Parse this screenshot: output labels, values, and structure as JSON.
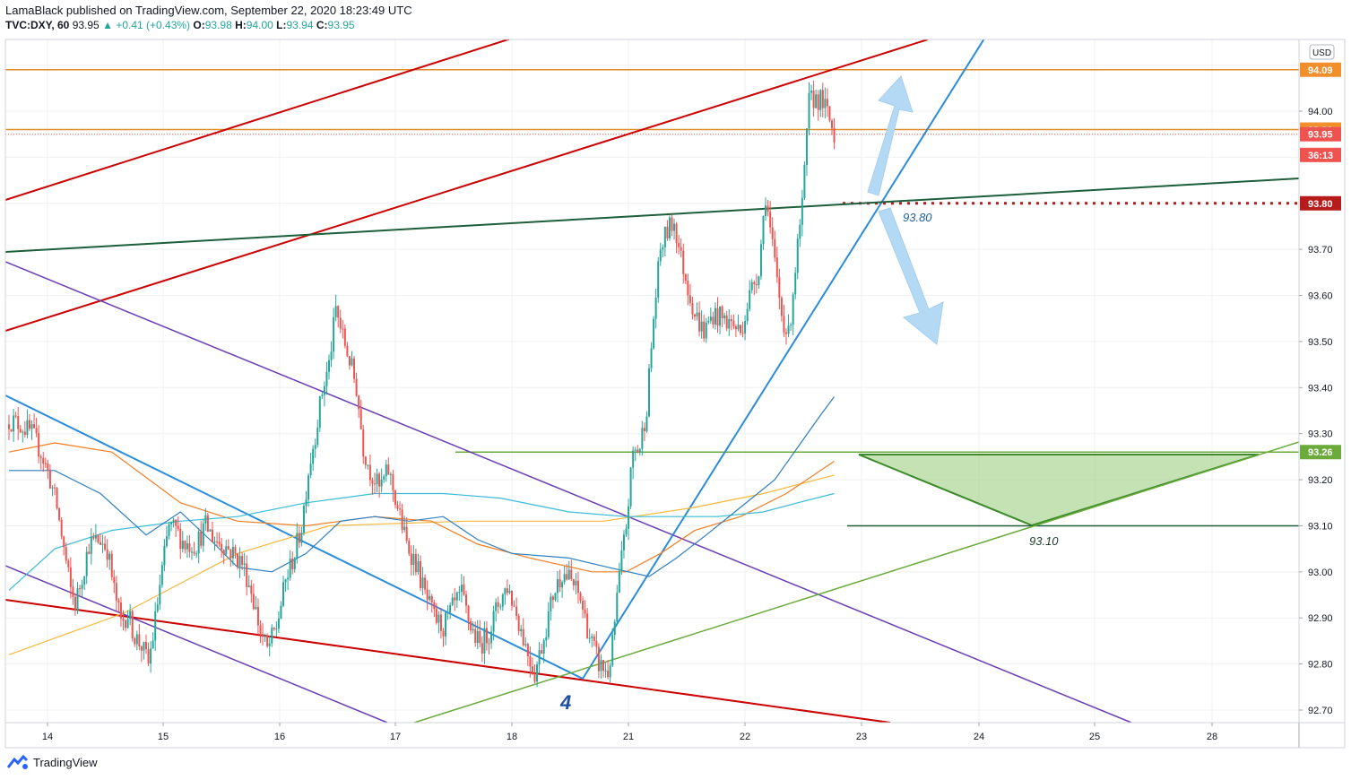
{
  "header": {
    "publisher_line": "LamaBlack published on TradingView.com, September 22, 2020 18:23:49 UTC",
    "symbol": "TVC:DXY, 60",
    "last": "93.95",
    "change_arrow": "▲",
    "change": "+0.41 (+0.43%)",
    "o_label": "O:",
    "o": "93.98",
    "h_label": "H:",
    "h": "94.00",
    "l_label": "L:",
    "l": "93.94",
    "c_label": "C:",
    "c": "93.95"
  },
  "footer": {
    "brand": "TradingView"
  },
  "colors": {
    "up": "#26a69a",
    "down": "#ef5350",
    "red_channel": "#cc0000",
    "purple": "#6a3db5",
    "blue": "#2a8cdb",
    "green_light": "#6aab3c",
    "green_dark": "#1e5e3a",
    "orange": "#e08a2a",
    "ma_yellow": "#f6b93b",
    "ma_orange": "#f57c20",
    "ma_cyan": "#38bcd5",
    "ma_blue": "#2d7fc1"
  },
  "chart_data": {
    "type": "candlestick",
    "currency_label": "USD",
    "ylim": [
      92.64,
      94.17
    ],
    "y_ticks": [
      "94.00",
      "93.70",
      "93.60",
      "93.50",
      "93.40",
      "93.30",
      "93.20",
      "93.10",
      "93.00",
      "92.90",
      "92.80",
      "92.70"
    ],
    "x_ticks": [
      "14",
      "15",
      "16",
      "17",
      "18",
      "21",
      "22",
      "23",
      "24",
      "25",
      "28"
    ],
    "price_tags": [
      {
        "label": "94.09",
        "value": 94.09,
        "color": "#f08f2b"
      },
      {
        "label": "93.96",
        "value": 93.96,
        "color": "#f08f2b"
      },
      {
        "label": "93.95",
        "value": 93.95,
        "color": "#ef5350"
      },
      {
        "label": "36:13",
        "value": 93.905,
        "color": "#ef5350"
      },
      {
        "label": "93.80",
        "value": 93.8,
        "color": "#b71c1c"
      },
      {
        "label": "93.26",
        "value": 93.26,
        "color": "#6aab3c"
      }
    ],
    "annotations": [
      {
        "text": "93.80",
        "kind": "level"
      },
      {
        "text": "93.10",
        "kind": "level"
      },
      {
        "text": "4",
        "kind": "wave"
      }
    ],
    "candle_path": [
      [
        0,
        93.33
      ],
      [
        5,
        93.32
      ],
      [
        10,
        93.3
      ],
      [
        14,
        93.26
      ],
      [
        18,
        93.2
      ],
      [
        21,
        93.14
      ],
      [
        24,
        93.05
      ],
      [
        27,
        92.96
      ],
      [
        29,
        92.93
      ],
      [
        32,
        92.99
      ],
      [
        35,
        93.06
      ],
      [
        40,
        93.07
      ],
      [
        43,
        93.05
      ],
      [
        46,
        92.96
      ],
      [
        49,
        92.89
      ],
      [
        52,
        92.91
      ],
      [
        55,
        92.86
      ],
      [
        58,
        92.84
      ],
      [
        61,
        92.8
      ],
      [
        63,
        92.86
      ],
      [
        66,
        92.97
      ],
      [
        70,
        93.1
      ],
      [
        73,
        93.09
      ],
      [
        77,
        93.06
      ],
      [
        82,
        93.06
      ],
      [
        86,
        93.1
      ],
      [
        90,
        93.07
      ],
      [
        94,
        93.06
      ],
      [
        98,
        93.04
      ],
      [
        102,
        93.02
      ],
      [
        106,
        92.96
      ],
      [
        110,
        92.87
      ],
      [
        113,
        92.83
      ],
      [
        117,
        92.88
      ],
      [
        121,
        92.98
      ],
      [
        125,
        93.04
      ],
      [
        128,
        93.1
      ],
      [
        131,
        93.22
      ],
      [
        134,
        93.3
      ],
      [
        137,
        93.39
      ],
      [
        140,
        93.45
      ],
      [
        143,
        93.57
      ],
      [
        146,
        93.51
      ],
      [
        149,
        93.46
      ],
      [
        152,
        93.4
      ],
      [
        155,
        93.27
      ],
      [
        158,
        93.22
      ],
      [
        162,
        93.18
      ],
      [
        166,
        93.22
      ],
      [
        170,
        93.14
      ],
      [
        174,
        93.06
      ],
      [
        178,
        93.02
      ],
      [
        182,
        92.95
      ],
      [
        186,
        92.9
      ],
      [
        190,
        92.88
      ],
      [
        194,
        92.92
      ],
      [
        198,
        92.95
      ],
      [
        202,
        92.88
      ],
      [
        206,
        92.84
      ],
      [
        210,
        92.87
      ],
      [
        214,
        92.93
      ],
      [
        218,
        92.97
      ],
      [
        222,
        92.91
      ],
      [
        226,
        92.84
      ],
      [
        230,
        92.78
      ],
      [
        234,
        92.86
      ],
      [
        238,
        92.95
      ],
      [
        242,
        93.0
      ],
      [
        246,
        92.98
      ],
      [
        250,
        92.94
      ],
      [
        254,
        92.86
      ],
      [
        258,
        92.8
      ],
      [
        262,
        92.78
      ],
      [
        264,
        92.84
      ],
      [
        267,
        92.99
      ],
      [
        270,
        93.1
      ],
      [
        273,
        93.26
      ],
      [
        276,
        93.27
      ],
      [
        279,
        93.36
      ],
      [
        282,
        93.55
      ],
      [
        285,
        93.7
      ],
      [
        288,
        93.74
      ],
      [
        291,
        93.76
      ],
      [
        294,
        93.68
      ],
      [
        297,
        93.62
      ],
      [
        300,
        93.56
      ],
      [
        304,
        93.52
      ],
      [
        308,
        93.56
      ],
      [
        312,
        93.55
      ],
      [
        316,
        93.54
      ],
      [
        320,
        93.52
      ],
      [
        324,
        93.6
      ],
      [
        328,
        93.66
      ],
      [
        331,
        93.82
      ],
      [
        333,
        93.74
      ],
      [
        336,
        93.63
      ],
      [
        338,
        93.56
      ],
      [
        341,
        93.51
      ],
      [
        344,
        93.66
      ],
      [
        347,
        93.79
      ],
      [
        350,
        94.02
      ],
      [
        353,
        94.03
      ],
      [
        356,
        94.02
      ],
      [
        359,
        93.98
      ],
      [
        361,
        93.95
      ]
    ],
    "moving_averages": [
      {
        "name": "ma_yellow",
        "points": [
          [
            0,
            92.82
          ],
          [
            50,
            92.91
          ],
          [
            100,
            93.04
          ],
          [
            140,
            93.1
          ],
          [
            200,
            93.11
          ],
          [
            260,
            93.11
          ],
          [
            300,
            93.14
          ],
          [
            330,
            93.17
          ],
          [
            361,
            93.21
          ]
        ]
      },
      {
        "name": "ma_orange",
        "points": [
          [
            0,
            93.26
          ],
          [
            20,
            93.28
          ],
          [
            45,
            93.26
          ],
          [
            75,
            93.15
          ],
          [
            100,
            93.11
          ],
          [
            130,
            93.1
          ],
          [
            160,
            93.12
          ],
          [
            185,
            93.11
          ],
          [
            205,
            93.06
          ],
          [
            228,
            93.03
          ],
          [
            255,
            93.0
          ],
          [
            270,
            93.0
          ],
          [
            285,
            93.04
          ],
          [
            300,
            93.09
          ],
          [
            320,
            93.12
          ],
          [
            340,
            93.17
          ],
          [
            361,
            93.24
          ]
        ]
      },
      {
        "name": "ma_cyan",
        "points": [
          [
            0,
            92.96
          ],
          [
            20,
            93.05
          ],
          [
            45,
            93.09
          ],
          [
            75,
            93.11
          ],
          [
            100,
            93.12
          ],
          [
            130,
            93.15
          ],
          [
            160,
            93.17
          ],
          [
            190,
            93.17
          ],
          [
            215,
            93.16
          ],
          [
            245,
            93.13
          ],
          [
            270,
            93.12
          ],
          [
            290,
            93.12
          ],
          [
            310,
            93.12
          ],
          [
            330,
            93.13
          ],
          [
            345,
            93.15
          ],
          [
            361,
            93.17
          ]
        ]
      },
      {
        "name": "ma_blue",
        "points": [
          [
            0,
            93.22
          ],
          [
            20,
            93.22
          ],
          [
            40,
            93.17
          ],
          [
            60,
            93.08
          ],
          [
            75,
            93.13
          ],
          [
            90,
            93.06
          ],
          [
            100,
            93.01
          ],
          [
            115,
            93.0
          ],
          [
            130,
            93.04
          ],
          [
            145,
            93.11
          ],
          [
            160,
            93.12
          ],
          [
            175,
            93.11
          ],
          [
            190,
            93.12
          ],
          [
            205,
            93.07
          ],
          [
            220,
            93.04
          ],
          [
            245,
            93.03
          ],
          [
            262,
            93.01
          ],
          [
            280,
            92.99
          ],
          [
            292,
            93.03
          ],
          [
            305,
            93.08
          ],
          [
            320,
            93.14
          ],
          [
            335,
            93.2
          ],
          [
            345,
            93.27
          ],
          [
            355,
            93.34
          ],
          [
            361,
            93.38
          ]
        ]
      }
    ]
  }
}
